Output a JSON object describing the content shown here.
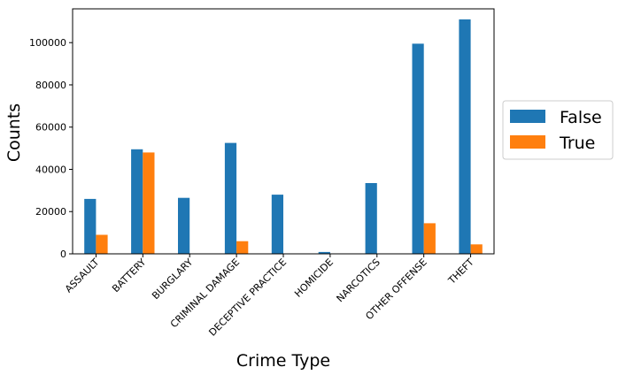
{
  "chart_data": {
    "type": "bar",
    "categories": [
      "ASSAULT",
      "BATTERY",
      "BURGLARY",
      "CRIMINAL DAMAGE",
      "DECEPTIVE PRACTICE",
      "HOMICIDE",
      "NARCOTICS",
      "OTHER OFFENSE",
      "THEFT"
    ],
    "series": [
      {
        "name": "False",
        "values": [
          26000,
          49500,
          26500,
          52500,
          28000,
          900,
          33500,
          99500,
          111000
        ]
      },
      {
        "name": "True",
        "values": [
          9000,
          48000,
          0,
          6000,
          0,
          0,
          0,
          14500,
          4500
        ]
      }
    ],
    "xlabel": "Crime Type",
    "ylabel": "Counts",
    "ylim": [
      0,
      116000
    ],
    "yticks": [
      0,
      20000,
      40000,
      60000,
      80000,
      100000
    ],
    "ytick_labels": [
      "0",
      "20000",
      "40000",
      "60000",
      "80000",
      "100000"
    ],
    "grid": false,
    "legend_position": "right",
    "colors": {
      "False": "#1f77b4",
      "True": "#ff7f0e"
    }
  }
}
